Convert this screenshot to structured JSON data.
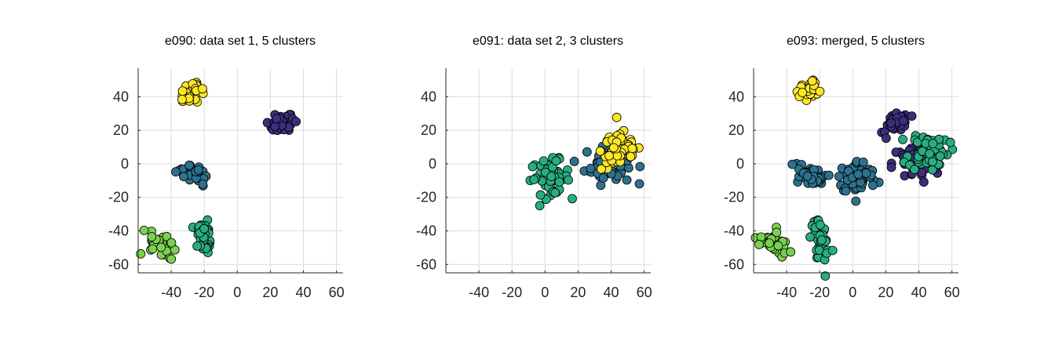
{
  "chart_data": [
    {
      "type": "scatter",
      "title": "e090: data set 1, 5 clusters",
      "xlabel": "",
      "ylabel": "",
      "xlim": [
        -60,
        64
      ],
      "ylim": [
        -65,
        57
      ],
      "xticks": [
        -40,
        -20,
        0,
        20,
        40,
        60
      ],
      "yticks": [
        40,
        20,
        0,
        -20,
        -40,
        -60
      ],
      "grid": true,
      "clusters": [
        {
          "color": "#fde725",
          "center": [
            -27,
            43
          ],
          "spread": [
            4,
            2.5
          ],
          "tilt": 0.6,
          "n": 40
        },
        {
          "color": "#3b2f7d",
          "center": [
            27,
            24
          ],
          "spread": [
            4,
            2.5
          ],
          "tilt": 0.3,
          "n": 40
        },
        {
          "color": "#2c728e",
          "center": [
            -26,
            -6
          ],
          "spread": [
            2.5,
            5
          ],
          "tilt": 1.2,
          "n": 40
        },
        {
          "color": "#27ad81",
          "center": [
            -20,
            -43
          ],
          "spread": [
            2.5,
            6
          ],
          "tilt": 0.2,
          "n": 40
        },
        {
          "color": "#7ad151",
          "center": [
            -48,
            -48
          ],
          "spread": [
            3,
            5
          ],
          "tilt": 1.0,
          "n": 35
        }
      ]
    },
    {
      "type": "scatter",
      "title": "e091: data set 2, 3 clusters",
      "xlabel": "",
      "ylabel": "",
      "xlim": [
        -60,
        64
      ],
      "ylim": [
        -65,
        57
      ],
      "xticks": [
        -40,
        -20,
        0,
        20,
        40,
        60
      ],
      "yticks": [
        40,
        20,
        0,
        -20,
        -40,
        -60
      ],
      "grid": true,
      "clusters": [
        {
          "color": "#2c728e",
          "center": [
            38,
            0
          ],
          "spread": [
            7,
            6
          ],
          "tilt": 0,
          "n": 60
        },
        {
          "color": "#27ad81",
          "center": [
            3,
            -8
          ],
          "spread": [
            6,
            5
          ],
          "tilt": 0,
          "n": 60
        },
        {
          "color": "#fde725",
          "center": [
            46,
            8
          ],
          "spread": [
            6,
            6
          ],
          "tilt": 0,
          "n": 60
        }
      ]
    },
    {
      "type": "scatter",
      "title": "e093: merged, 5 clusters",
      "xlabel": "",
      "ylabel": "",
      "xlim": [
        -60,
        64
      ],
      "ylim": [
        -65,
        57
      ],
      "xticks": [
        -40,
        -20,
        0,
        20,
        40,
        60
      ],
      "yticks": [
        40,
        20,
        0,
        -20,
        -40,
        -60
      ],
      "grid": true,
      "clusters": [
        {
          "color": "#fde725",
          "center": [
            -27,
            43
          ],
          "spread": [
            4,
            2.5
          ],
          "tilt": 0.6,
          "n": 40
        },
        {
          "color": "#3b2f7d",
          "center": [
            27,
            24
          ],
          "spread": [
            4,
            2.5
          ],
          "tilt": 0.3,
          "n": 40
        },
        {
          "color": "#2c728e",
          "center": [
            -26,
            -6
          ],
          "spread": [
            2.5,
            5
          ],
          "tilt": 1.2,
          "n": 40
        },
        {
          "color": "#27ad81",
          "center": [
            -20,
            -43
          ],
          "spread": [
            2.5,
            6
          ],
          "tilt": 0.2,
          "n": 40
        },
        {
          "color": "#7ad151",
          "center": [
            -48,
            -48
          ],
          "spread": [
            3,
            5
          ],
          "tilt": 1.0,
          "n": 35
        },
        {
          "color": "#3b2f7d",
          "center": [
            38,
            0
          ],
          "spread": [
            7,
            6
          ],
          "tilt": 0,
          "n": 60
        },
        {
          "color": "#2c728e",
          "center": [
            3,
            -8
          ],
          "spread": [
            6,
            5
          ],
          "tilt": 0,
          "n": 60
        },
        {
          "color": "#27ad81",
          "center": [
            46,
            8
          ],
          "spread": [
            6,
            6
          ],
          "tilt": 0,
          "n": 60
        }
      ]
    }
  ]
}
